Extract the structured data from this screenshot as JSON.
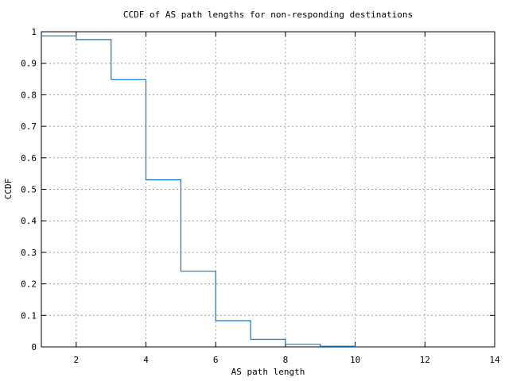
{
  "chart_data": {
    "type": "line",
    "subtype": "ccdf-step-post",
    "title": "CCDF of AS path lengths for non-responding destinations",
    "xlabel": "AS path length",
    "ylabel": "CCDF",
    "xlim": [
      1,
      14
    ],
    "ylim": [
      0,
      1
    ],
    "x_ticks": [
      2,
      4,
      6,
      8,
      10,
      12,
      14
    ],
    "x_tick_labels": [
      "2",
      "4",
      "6",
      "8",
      "10",
      "12",
      "14"
    ],
    "y_ticks": [
      0,
      0.1,
      0.2,
      0.3,
      0.4,
      0.5,
      0.6,
      0.7,
      0.8,
      0.9,
      1
    ],
    "y_tick_labels": [
      "0",
      "0.1",
      "0.2",
      "0.3",
      "0.4",
      "0.5",
      "0.6",
      "0.7",
      "0.8",
      "0.9",
      "1"
    ],
    "grid": "dashed",
    "legend": "none",
    "colors": {
      "line": "#0d78d2",
      "grid": "#9e9e9e",
      "axis": "#000000",
      "background": "#ffffff"
    },
    "series": [
      {
        "name": "ccdf",
        "style": "step-post",
        "x": [
          1,
          2,
          3,
          4,
          5,
          6,
          7,
          8,
          9,
          10
        ],
        "y": [
          0.987,
          0.975,
          0.848,
          0.53,
          0.24,
          0.083,
          0.024,
          0.008,
          0.002,
          0
        ]
      }
    ]
  }
}
